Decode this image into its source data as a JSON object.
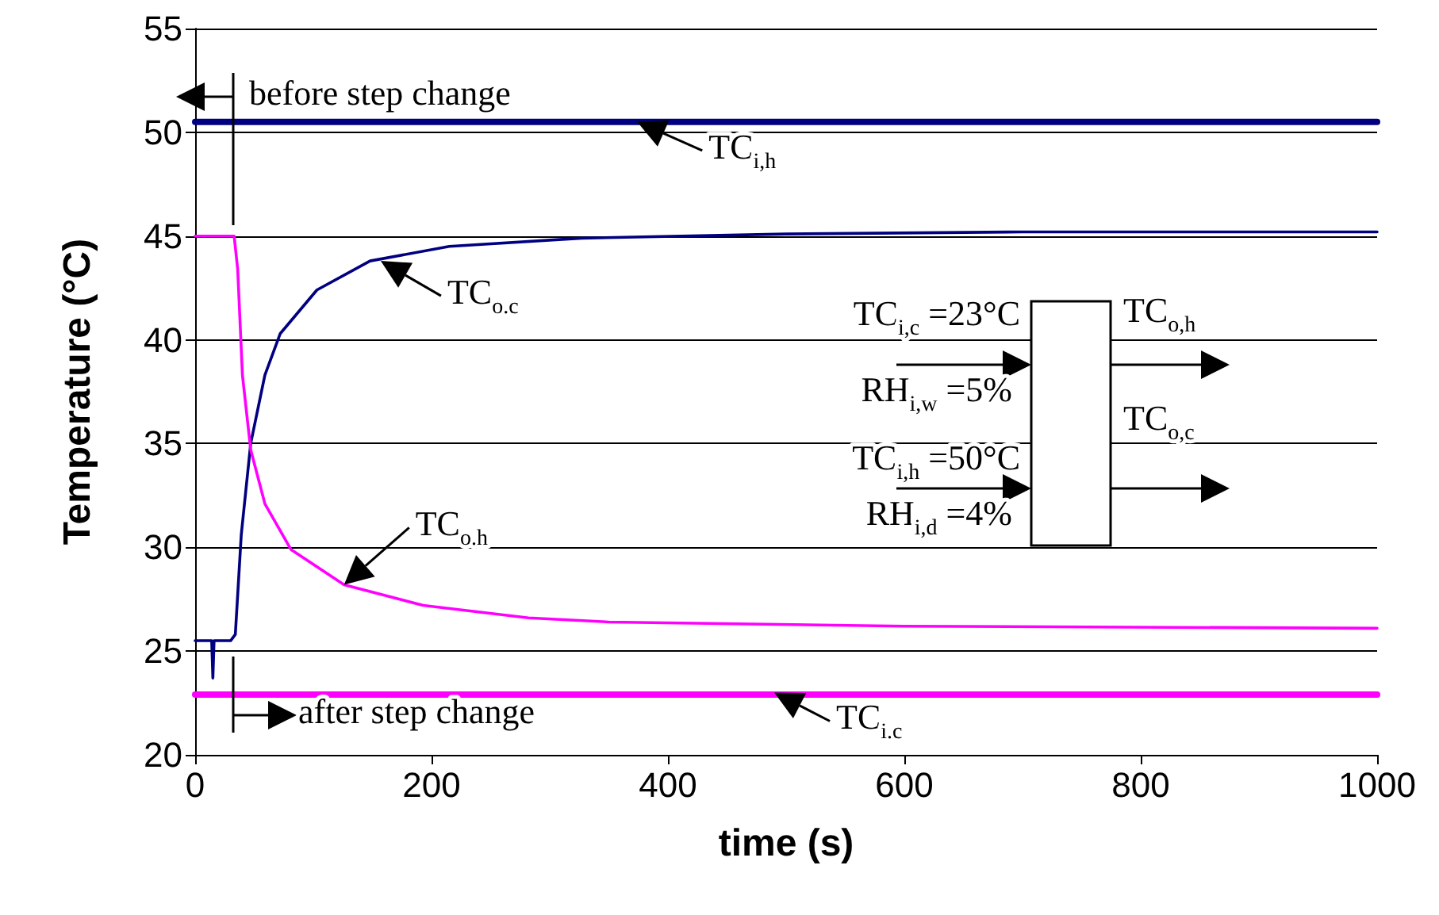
{
  "chart_data": {
    "type": "line",
    "xlabel": "time (s)",
    "ylabel": "Temperature (°C)",
    "xlim": [
      0,
      1000
    ],
    "xticks": [
      0,
      200,
      400,
      600,
      800,
      1000
    ],
    "ylim": [
      20,
      55
    ],
    "yticks": [
      20,
      25,
      30,
      35,
      40,
      45,
      50,
      55
    ],
    "grid": "y",
    "marker": "none",
    "line_style": "solid",
    "series": [
      {
        "color": "#000080",
        "x": [
          0,
          200,
          400,
          600,
          800,
          1000
        ],
        "values": [
          50.5,
          50.5,
          50.5,
          50.5,
          50.5,
          50.5
        ]
      },
      {
        "color": "#000080",
        "x": [
          0,
          14,
          15,
          16,
          17,
          30,
          34,
          39,
          47,
          59,
          72,
          103,
          148,
          215,
          327,
          500,
          700,
          1000
        ],
        "values": [
          25.5,
          25.5,
          23.7,
          25.5,
          25.5,
          25.5,
          25.8,
          30.6,
          35.0,
          38.3,
          40.3,
          42.4,
          43.8,
          44.5,
          44.9,
          45.1,
          45.2,
          45.2
        ]
      },
      {
        "color": "#ff00ff",
        "x": [
          0,
          30,
          33,
          36,
          40,
          47,
          59,
          81,
          126,
          193,
          282,
          350,
          600,
          1000
        ],
        "values": [
          45,
          45,
          45,
          43.4,
          38.3,
          34.7,
          32.1,
          29.9,
          28.2,
          27.2,
          26.6,
          26.4,
          26.2,
          26.1
        ]
      },
      {
        "color": "#ff00ff",
        "x": [
          0,
          200,
          400,
          600,
          800,
          1000
        ],
        "values": [
          22.9,
          22.9,
          22.9,
          22.9,
          22.9,
          22.9
        ]
      }
    ],
    "annotations": [
      "before step change",
      "after step change",
      {
        "text": "TC$_{i,h}$",
        "x": 374,
        "y": 50.5
      },
      {
        "text": "TC$_{o.c}$",
        "x": 157,
        "y": 43.8
      },
      {
        "text": "TC$_{o.h}$",
        "x": 126,
        "y": 28.2
      },
      {
        "text": "TC$_{i.c}$",
        "x": 490,
        "y": 23.0
      },
      "TC$_{i,c}$ =23°C",
      "RH$_{i,w}$ =5%",
      "TC$_{i,h}$ =50°C",
      "RH$_{i,d}$ =4%",
      "TC$_{o,h}$",
      "TC$_{o,c}$"
    ]
  }
}
